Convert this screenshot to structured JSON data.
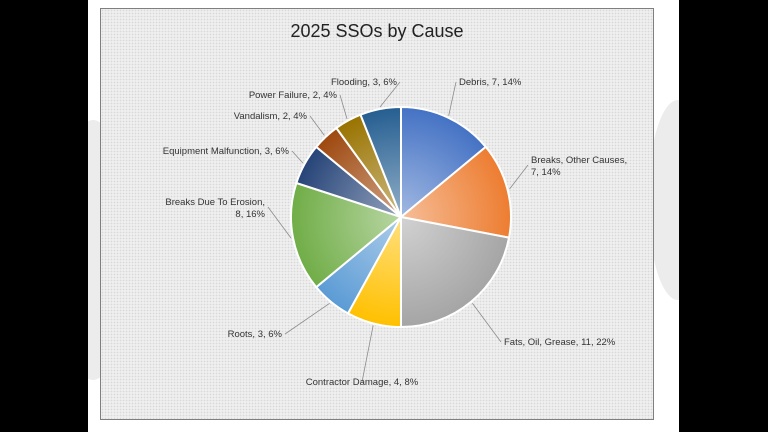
{
  "chart_data": {
    "type": "pie",
    "title": "2025 SSOs by Cause",
    "slices": [
      {
        "name": "Debris",
        "value": 7,
        "percent": 14,
        "lines": [
          "Debris, 7, 14%"
        ],
        "color": "#4472c4"
      },
      {
        "name": "Breaks, Other Causes",
        "value": 7,
        "percent": 14,
        "lines": [
          "Breaks, Other Causes,",
          "7, 14%"
        ],
        "color": "#ed7d31"
      },
      {
        "name": "Fats, Oil, Grease",
        "value": 11,
        "percent": 22,
        "lines": [
          "Fats, Oil, Grease, 11, 22%"
        ],
        "color": "#a5a5a5"
      },
      {
        "name": "Contractor Damage",
        "value": 4,
        "percent": 8,
        "lines": [
          "Contractor Damage, 4, 8%"
        ],
        "color": "#ffc000"
      },
      {
        "name": "Roots",
        "value": 3,
        "percent": 6,
        "lines": [
          "Roots, 3, 6%"
        ],
        "color": "#5b9bd5"
      },
      {
        "name": "Breaks Due To Erosion",
        "value": 8,
        "percent": 16,
        "lines": [
          "Breaks Due To Erosion,",
          "8, 16%"
        ],
        "color": "#70ad47"
      },
      {
        "name": "Equipment Malfunction",
        "value": 3,
        "percent": 6,
        "lines": [
          "Equipment Malfunction, 3, 6%"
        ],
        "color": "#264478"
      },
      {
        "name": "Vandalism",
        "value": 2,
        "percent": 4,
        "lines": [
          "Vandalism, 2, 4%"
        ],
        "color": "#9e480e"
      },
      {
        "name": "Power Failure",
        "value": 2,
        "percent": 4,
        "lines": [
          "Power Failure, 2, 4%"
        ],
        "color": "#997300"
      },
      {
        "name": "Flooding",
        "value": 3,
        "percent": 6,
        "lines": [
          "Flooding, 3, 6%"
        ],
        "color": "#255e91"
      }
    ]
  }
}
